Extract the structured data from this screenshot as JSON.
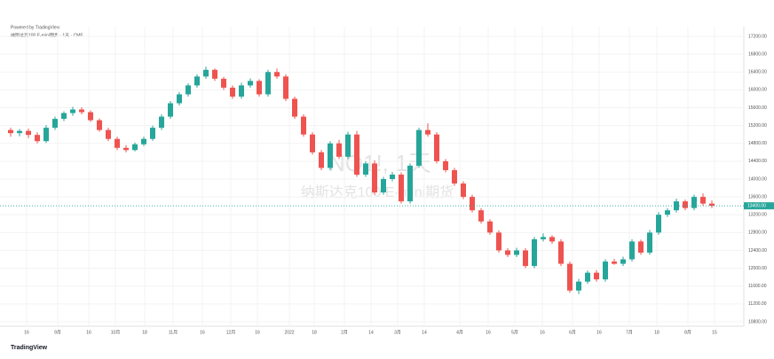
{
  "header": {
    "attribution": "Powered by TradingView",
    "legend": "纳斯达克100 E-mini期货 · 1天 · CME",
    "last_price_label": "13400.00"
  },
  "watermark": {
    "symbol": "NQ1!, 1天",
    "name": "纳斯达克100 E-mini期货"
  },
  "footer": {
    "logo": "TradingView"
  },
  "chart_data": {
    "type": "candlestick",
    "up_color": "#26a69a",
    "down_color": "#ef5350",
    "open": [
      15100,
      15030,
      15080,
      14990,
      14850,
      15150,
      15350,
      15480,
      15560,
      15500,
      15320,
      15100,
      14900,
      14700,
      14650,
      14780,
      14900,
      15150,
      15400,
      15700,
      15900,
      16100,
      16300,
      16450,
      16250,
      16050,
      15850,
      16100,
      16200,
      15900,
      16400,
      16300,
      15800,
      15400,
      15000,
      14600,
      14250,
      14800,
      14500,
      15000,
      14100,
      14350,
      13700,
      14000,
      14100,
      13500,
      14300,
      15100,
      15000,
      14400,
      14200,
      13900,
      13600,
      13300,
      13050,
      12800,
      12400,
      12300,
      12400,
      12050,
      12650,
      12700,
      12600,
      12100,
      11500,
      11700,
      11900,
      11750,
      12150,
      12100,
      12200,
      12600,
      12350,
      12800,
      13200,
      13300,
      13500,
      13350,
      13600,
      13450
    ],
    "high": [
      15150,
      15120,
      15130,
      15050,
      15210,
      15400,
      15520,
      15620,
      15610,
      15540,
      15360,
      15150,
      14950,
      14760,
      14820,
      14950,
      15200,
      15450,
      15750,
      15950,
      16150,
      16350,
      16520,
      16480,
      16290,
      16100,
      16160,
      16260,
      16240,
      16450,
      16480,
      16350,
      15850,
      15450,
      15050,
      14650,
      14850,
      14880,
      15060,
      15080,
      14400,
      14420,
      14050,
      14160,
      14150,
      14350,
      15150,
      15250,
      15050,
      14450,
      14250,
      13950,
      13650,
      13350,
      13100,
      12850,
      12450,
      12460,
      12450,
      12700,
      12780,
      12740,
      12650,
      12150,
      11760,
      11950,
      11960,
      12200,
      12210,
      12260,
      12650,
      12640,
      12860,
      13260,
      13350,
      13560,
      13540,
      13650,
      13680,
      13520
    ],
    "low": [
      14950,
      14960,
      14920,
      14800,
      14810,
      15100,
      15300,
      15420,
      15450,
      15280,
      15060,
      14850,
      14650,
      14600,
      14620,
      14740,
      14860,
      15100,
      15350,
      15650,
      15850,
      16050,
      16250,
      16200,
      16000,
      15800,
      15800,
      16050,
      15850,
      15850,
      16250,
      15750,
      15350,
      14950,
      14550,
      14200,
      14200,
      14450,
      14450,
      14050,
      14050,
      13650,
      13650,
      13950,
      13450,
      13450,
      14250,
      14950,
      14350,
      14150,
      13850,
      13550,
      13250,
      13000,
      12750,
      12350,
      12250,
      12250,
      12000,
      12000,
      12600,
      12550,
      12050,
      11450,
      11420,
      11650,
      11700,
      11700,
      12080,
      12050,
      12150,
      12300,
      12300,
      12750,
      13150,
      13250,
      13300,
      13300,
      13400,
      13350
    ],
    "close": [
      15030,
      15080,
      14990,
      14850,
      15150,
      15350,
      15480,
      15560,
      15500,
      15320,
      15100,
      14900,
      14700,
      14650,
      14780,
      14900,
      15150,
      15400,
      15700,
      15900,
      16100,
      16300,
      16450,
      16250,
      16050,
      15850,
      16100,
      16200,
      15900,
      16400,
      16300,
      15800,
      15400,
      15000,
      14600,
      14250,
      14800,
      14500,
      15000,
      14100,
      14350,
      13700,
      14000,
      14100,
      13500,
      14300,
      15100,
      15000,
      14400,
      14200,
      13900,
      13600,
      13300,
      13050,
      12800,
      12400,
      12300,
      12400,
      12050,
      12650,
      12700,
      12600,
      12100,
      11500,
      11700,
      11900,
      11750,
      12150,
      12100,
      12200,
      12600,
      12350,
      12800,
      13200,
      13300,
      13500,
      13350,
      13600,
      13450,
      13400
    ],
    "xlim": [
      -1.2,
      82.6
    ],
    "xticks": [
      {
        "value": 1.8,
        "label": "16"
      },
      {
        "value": 5.3,
        "label": "9月"
      },
      {
        "value": 8.8,
        "label": "16"
      },
      {
        "value": 11.8,
        "label": "10月"
      },
      {
        "value": 15.1,
        "label": "18"
      },
      {
        "value": 18.3,
        "label": "11月"
      },
      {
        "value": 21.6,
        "label": "16"
      },
      {
        "value": 24.8,
        "label": "12月"
      },
      {
        "value": 27.8,
        "label": "16"
      },
      {
        "value": 31.4,
        "label": "2022"
      },
      {
        "value": 34.2,
        "label": "18"
      },
      {
        "value": 37.6,
        "label": "2月"
      },
      {
        "value": 40.6,
        "label": "14"
      },
      {
        "value": 43.6,
        "label": "3月"
      },
      {
        "value": 46.6,
        "label": "14"
      },
      {
        "value": 50.6,
        "label": "4月"
      },
      {
        "value": 53.8,
        "label": "16"
      },
      {
        "value": 56.8,
        "label": "5月"
      },
      {
        "value": 59.9,
        "label": "16"
      },
      {
        "value": 63.3,
        "label": "6月"
      },
      {
        "value": 66.3,
        "label": "16"
      },
      {
        "value": 69.7,
        "label": "7月"
      },
      {
        "value": 72.8,
        "label": "18"
      },
      {
        "value": 76.3,
        "label": "8月"
      },
      {
        "value": 79.3,
        "label": "15"
      }
    ],
    "ylim": [
      10700,
      17300
    ],
    "yticks": [
      {
        "value": 10800,
        "label": "10800.00"
      },
      {
        "value": 11200,
        "label": "11200.00"
      },
      {
        "value": 11600,
        "label": "11600.00"
      },
      {
        "value": 12000,
        "label": "12000.00"
      },
      {
        "value": 12400,
        "label": "12400.00"
      },
      {
        "value": 12800,
        "label": "12800.00"
      },
      {
        "value": 13200,
        "label": "13200.00"
      },
      {
        "value": 13600,
        "label": "13600.00"
      },
      {
        "value": 14000,
        "label": "14000.00"
      },
      {
        "value": 14400,
        "label": "14400.00"
      },
      {
        "value": 14800,
        "label": "14800.00"
      },
      {
        "value": 15200,
        "label": "15200.00"
      },
      {
        "value": 15600,
        "label": "15600.00"
      },
      {
        "value": 16000,
        "label": "16000.00"
      },
      {
        "value": 16400,
        "label": "16400.00"
      },
      {
        "value": 16800,
        "label": "16800.00"
      },
      {
        "value": 17200,
        "label": "17200.00"
      }
    ],
    "grid": true
  }
}
